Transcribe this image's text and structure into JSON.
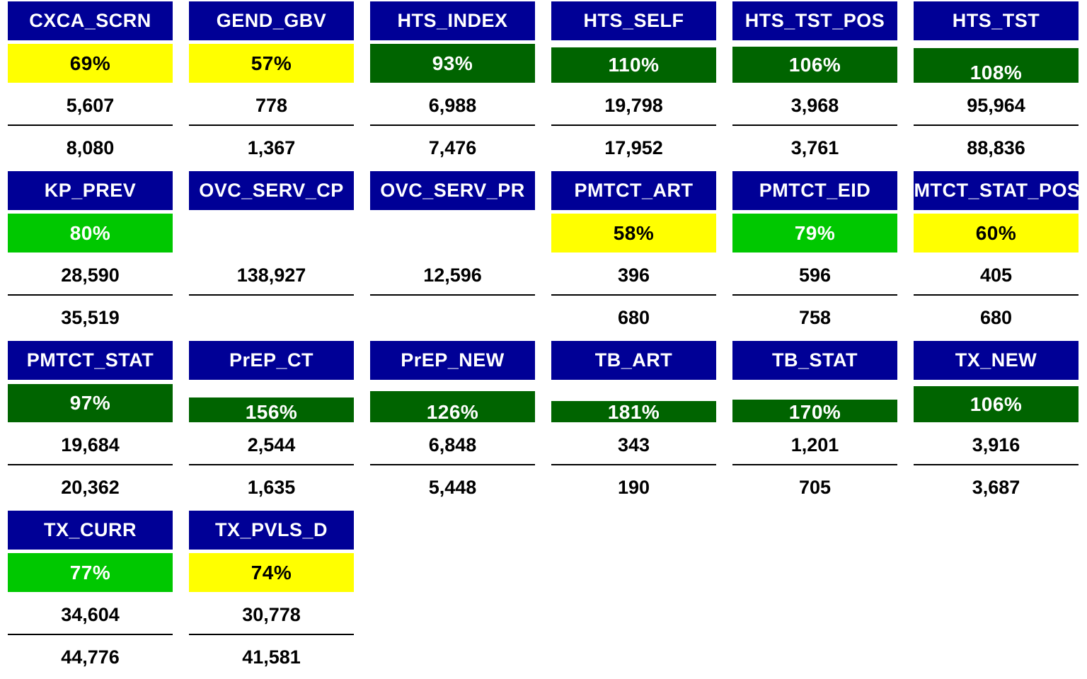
{
  "colors": {
    "header": "#000096",
    "dark_green": "#006400",
    "bright_green": "#00C800",
    "yellow": "#FFFF00"
  },
  "cards": [
    {
      "title": "CXCA_SCRN",
      "pct": "69%",
      "status": "yellow",
      "value": "5,607",
      "target": "8,080"
    },
    {
      "title": "GEND_GBV",
      "pct": "57%",
      "status": "yellow",
      "value": "778",
      "target": "1,367"
    },
    {
      "title": "HTS_INDEX",
      "pct": "93%",
      "status": "dark_green",
      "value": "6,988",
      "target": "7,476"
    },
    {
      "title": "HTS_SELF",
      "pct": "110%",
      "status": "dark_green",
      "value": "19,798",
      "target": "17,952"
    },
    {
      "title": "HTS_TST_POS",
      "pct": "106%",
      "status": "dark_green",
      "value": "3,968",
      "target": "3,761"
    },
    {
      "title": "HTS_TST",
      "pct": "108%",
      "status": "dark_green",
      "value": "95,964",
      "target": "88,836"
    },
    {
      "title": "KP_PREV",
      "pct": "80%",
      "status": "bright_green",
      "value": "28,590",
      "target": "35,519"
    },
    {
      "title": "OVC_SERV_CP",
      "pct": "",
      "status": "none",
      "value": "138,927",
      "target": ""
    },
    {
      "title": "OVC_SERV_PR",
      "pct": "",
      "status": "none",
      "value": "12,596",
      "target": ""
    },
    {
      "title": "PMTCT_ART",
      "pct": "58%",
      "status": "yellow",
      "value": "396",
      "target": "680"
    },
    {
      "title": "PMTCT_EID",
      "pct": "79%",
      "status": "bright_green",
      "value": "596",
      "target": "758"
    },
    {
      "title": "PMTCT_STAT_POS",
      "pct": "60%",
      "status": "yellow",
      "value": "405",
      "target": "680"
    },
    {
      "title": "PMTCT_STAT",
      "pct": "97%",
      "status": "dark_green",
      "value": "19,684",
      "target": "20,362"
    },
    {
      "title": "PrEP_CT",
      "pct": "156%",
      "status": "dark_green",
      "value": "2,544",
      "target": "1,635"
    },
    {
      "title": "PrEP_NEW",
      "pct": "126%",
      "status": "dark_green",
      "value": "6,848",
      "target": "5,448"
    },
    {
      "title": "TB_ART",
      "pct": "181%",
      "status": "dark_green",
      "value": "343",
      "target": "190"
    },
    {
      "title": "TB_STAT",
      "pct": "170%",
      "status": "dark_green",
      "value": "1,201",
      "target": "705"
    },
    {
      "title": "TX_NEW",
      "pct": "106%",
      "status": "dark_green",
      "value": "3,916",
      "target": "3,687"
    },
    {
      "title": "TX_CURR",
      "pct": "77%",
      "status": "bright_green",
      "value": "34,604",
      "target": "44,776"
    },
    {
      "title": "TX_PVLS_D",
      "pct": "74%",
      "status": "yellow",
      "value": "30,778",
      "target": "41,581"
    }
  ]
}
